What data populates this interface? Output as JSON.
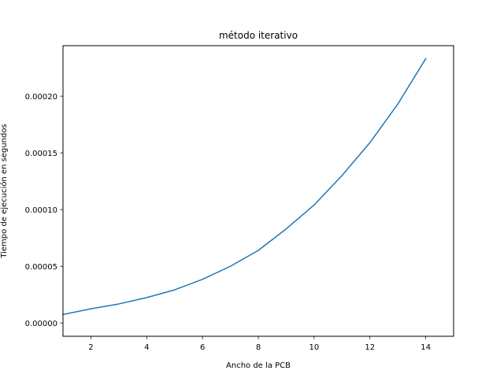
{
  "chart_data": {
    "type": "line",
    "title": "método iterativo",
    "xlabel": "Ancho de la PCB",
    "ylabel": "Tiempo de ejecución en segundos",
    "x": [
      1,
      2,
      3,
      4,
      5,
      6,
      7,
      8,
      9,
      10,
      11,
      12,
      13,
      14
    ],
    "series": [
      {
        "values": [
          7.5e-06,
          1.25e-05,
          1.68e-05,
          2.24e-05,
          2.92e-05,
          3.85e-05,
          5e-05,
          6.4e-05,
          8.3e-05,
          0.000104,
          0.00013,
          0.000159,
          0.000193,
          0.000233
        ],
        "color": "#1f77b4"
      }
    ],
    "xlim": [
      1,
      15
    ],
    "ylim": [
      -1.17e-05,
      0.0002445
    ],
    "xticks": [
      2,
      4,
      6,
      8,
      10,
      12,
      14
    ],
    "xtick_labels": [
      "2",
      "4",
      "6",
      "8",
      "10",
      "12",
      "14"
    ],
    "yticks": [
      0,
      5e-05,
      0.0001,
      0.00015,
      0.0002
    ],
    "ytick_labels": [
      "0.00000",
      "0.00005",
      "0.00010",
      "0.00015",
      "0.00020"
    ],
    "grid": false,
    "legend": "none"
  }
}
